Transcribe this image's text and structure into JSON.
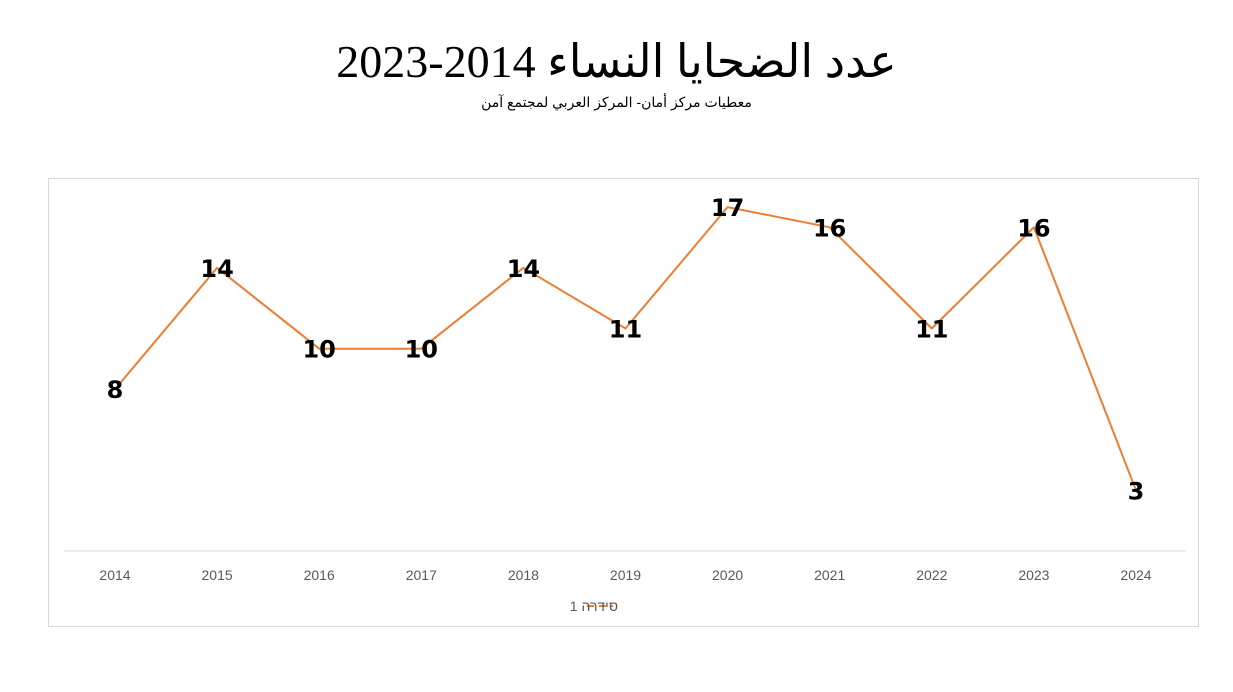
{
  "title": "عدد الضحايا النساء 2014-2023",
  "subtitle": "معطيات مركز أمان- المركز العربي لمجتمع آمن",
  "chart_data": {
    "type": "line",
    "categories": [
      "2014",
      "2015",
      "2016",
      "2017",
      "2018",
      "2019",
      "2020",
      "2021",
      "2022",
      "2023",
      "2024"
    ],
    "series": [
      {
        "name": "סידרה 1",
        "values": [
          8,
          14,
          10,
          10,
          14,
          11,
          17,
          16,
          11,
          16,
          3
        ],
        "color": "#ED7D31"
      }
    ],
    "ylim": [
      0,
      17.5
    ],
    "grid": false,
    "legend": "bottom",
    "data_labels": true
  }
}
